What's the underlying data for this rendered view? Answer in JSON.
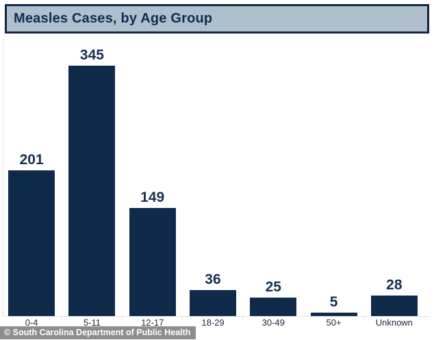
{
  "header": {
    "title": "Measles Cases, by Age Group"
  },
  "chart_data": {
    "type": "bar",
    "title": "Measles Cases, by Age Group",
    "categories": [
      "0-4",
      "5-11",
      "12-17",
      "18-29",
      "30-49",
      "50+",
      "Unknown"
    ],
    "values": [
      201,
      345,
      149,
      36,
      25,
      5,
      28
    ],
    "xlabel": "",
    "ylabel": "",
    "ylim": [
      0,
      383
    ],
    "grid": false,
    "legend": false,
    "data_labels": true
  },
  "footer": {
    "attribution": "© South Carolina Department of Public Health"
  },
  "colors": {
    "bar": "#102a4c",
    "value_label": "#16304f",
    "title_text": "#122c50",
    "title_bar_bg": "#aebfce",
    "title_bar_border": "#16263f",
    "axis_line": "#e2e2e2",
    "x_label": "#23283a",
    "watermark_bg": "#8d8d8d",
    "watermark_text": "#ffffff"
  }
}
